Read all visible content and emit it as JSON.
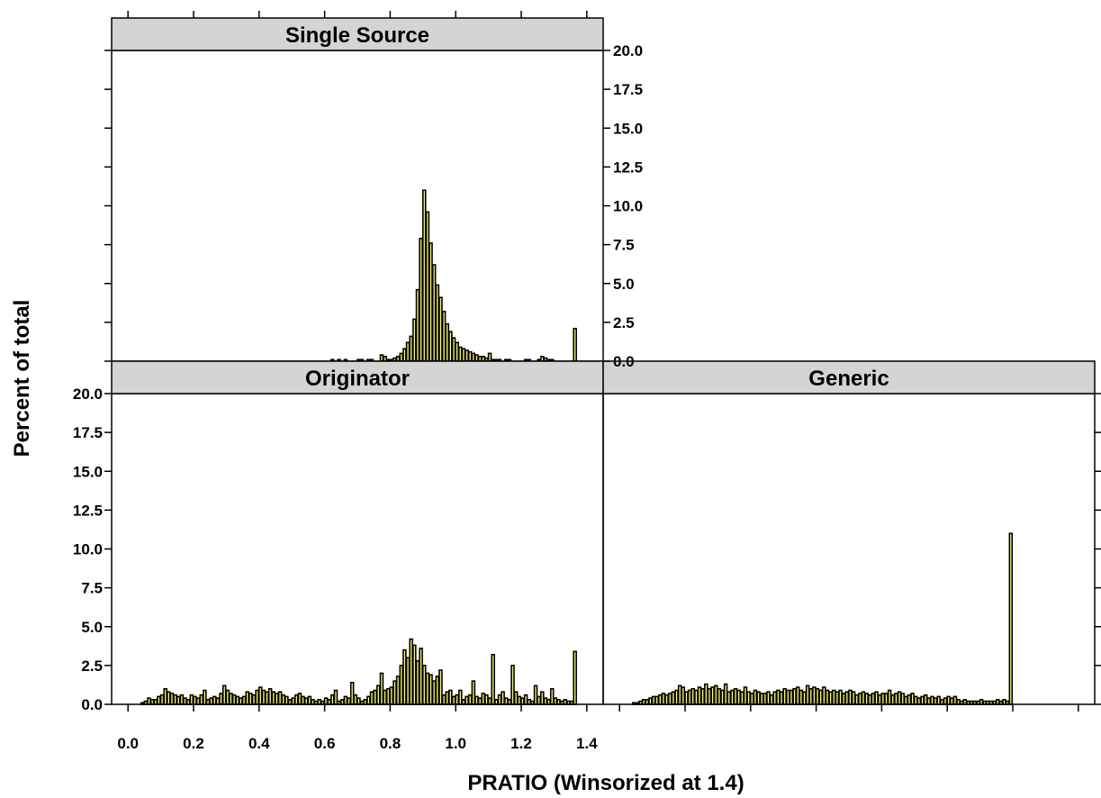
{
  "chart_data": {
    "type": "bar",
    "xlabel": "PRATIO (Winsorized at 1.4)",
    "ylabel": "Percent of total",
    "xlim": [
      -0.05,
      1.45
    ],
    "ylim": [
      0,
      20
    ],
    "x_ticks": [
      "0.0",
      "0.2",
      "0.4",
      "0.6",
      "0.8",
      "1.0",
      "1.2",
      "1.4"
    ],
    "x_tick_values": [
      0.0,
      0.2,
      0.4,
      0.6,
      0.8,
      1.0,
      1.2,
      1.4
    ],
    "y_ticks": [
      "0.0",
      "2.5",
      "5.0",
      "7.5",
      "10.0",
      "12.5",
      "15.0",
      "17.5",
      "20.0"
    ],
    "y_tick_values": [
      0,
      2.5,
      5,
      7.5,
      10,
      12.5,
      15,
      17.5,
      20
    ],
    "bin_width": 0.01,
    "bin_start": 0.0,
    "grid": false,
    "panels": [
      {
        "name": "Single Source",
        "values": [
          0,
          0,
          0,
          0,
          0,
          0,
          0,
          0,
          0,
          0,
          0,
          0,
          0,
          0,
          0,
          0,
          0,
          0,
          0,
          0,
          0,
          0,
          0,
          0,
          0,
          0,
          0,
          0,
          0,
          0,
          0,
          0,
          0,
          0,
          0,
          0,
          0,
          0,
          0,
          0,
          0,
          0,
          0,
          0,
          0,
          0,
          0,
          0,
          0,
          0,
          0,
          0,
          0,
          0,
          0,
          0,
          0,
          0,
          0,
          0,
          0,
          0,
          0.1,
          0,
          0.1,
          0,
          0.1,
          0,
          0,
          0,
          0.1,
          0.1,
          0,
          0.1,
          0.1,
          0,
          0,
          0.4,
          0.3,
          0.1,
          0.1,
          0.2,
          0.3,
          0.5,
          0.8,
          1.2,
          1.6,
          2.7,
          4.6,
          7.9,
          11.0,
          9.6,
          7.6,
          6.2,
          4.9,
          4.1,
          3.2,
          2.4,
          1.9,
          1.5,
          1.2,
          0.9,
          0.8,
          0.7,
          0.6,
          0.5,
          0.4,
          0.3,
          0.3,
          0.2,
          0.5,
          0.1,
          0.1,
          0.1,
          0,
          0.1,
          0.1,
          0,
          0,
          0,
          0,
          0.1,
          0.1,
          0,
          0,
          0.1,
          0.3,
          0.2,
          0.1,
          0.1,
          0,
          0,
          0,
          0,
          0,
          0,
          2.1
        ]
      },
      {
        "name": "Originator",
        "values": [
          0,
          0,
          0,
          0,
          0.1,
          0.2,
          0.4,
          0.3,
          0.3,
          0.5,
          0.6,
          1.0,
          0.8,
          0.7,
          0.6,
          0.5,
          0.6,
          0.4,
          0.3,
          0.6,
          0.5,
          0.4,
          0.6,
          0.9,
          0.3,
          0.4,
          0.5,
          0.4,
          0.7,
          1.2,
          0.9,
          0.7,
          0.6,
          0.5,
          0.4,
          0.5,
          0.8,
          0.7,
          0.6,
          0.9,
          1.1,
          0.9,
          0.8,
          1.0,
          0.8,
          0.7,
          0.8,
          0.6,
          0.5,
          0.3,
          0.4,
          0.6,
          0.7,
          0.5,
          0.4,
          0.5,
          0.3,
          0.2,
          0.3,
          0.2,
          0.4,
          0.3,
          0.6,
          0.9,
          0.2,
          0.3,
          0.5,
          0.4,
          1.4,
          0.6,
          0.4,
          0.2,
          0.3,
          0.5,
          0.8,
          0.9,
          1.2,
          2.0,
          0.9,
          1.0,
          1.1,
          1.5,
          1.8,
          2.5,
          3.5,
          3.0,
          4.2,
          3.8,
          2.8,
          3.6,
          2.5,
          2.0,
          1.9,
          1.5,
          1.8,
          2.2,
          0.6,
          0.8,
          0.9,
          0.5,
          0.6,
          0.9,
          0.3,
          0.5,
          0.6,
          1.5,
          0.5,
          0.4,
          0.7,
          0.6,
          0.4,
          3.2,
          0.3,
          0.6,
          0.8,
          0.4,
          0.3,
          2.5,
          0.8,
          0.5,
          0.4,
          0.6,
          0.3,
          0.2,
          1.2,
          0.5,
          0.8,
          0.4,
          0.3,
          1.0,
          0.4,
          0.3,
          0.2,
          0.3,
          0.2,
          0.2,
          3.4
        ]
      },
      {
        "name": "Generic",
        "values": [
          0,
          0,
          0,
          0,
          0.1,
          0.1,
          0.2,
          0.3,
          0.3,
          0.4,
          0.5,
          0.5,
          0.6,
          0.7,
          0.6,
          0.7,
          0.8,
          0.9,
          1.2,
          1.1,
          0.8,
          0.9,
          1.0,
          0.9,
          1.1,
          1.0,
          1.3,
          1.0,
          1.1,
          1.2,
          1.0,
          0.9,
          1.3,
          0.8,
          0.9,
          1.0,
          0.9,
          0.8,
          1.1,
          0.8,
          0.7,
          0.9,
          0.8,
          0.7,
          0.7,
          0.8,
          0.6,
          0.8,
          0.9,
          0.8,
          1.0,
          0.9,
          0.9,
          1.0,
          1.1,
          0.9,
          0.8,
          1.2,
          1.0,
          1.1,
          1.0,
          0.9,
          1.1,
          0.9,
          0.8,
          0.9,
          0.8,
          0.9,
          0.7,
          0.8,
          0.9,
          0.8,
          0.6,
          0.7,
          0.8,
          0.7,
          0.6,
          0.7,
          0.8,
          0.6,
          0.7,
          0.7,
          0.9,
          0.6,
          0.7,
          0.8,
          0.7,
          0.5,
          0.6,
          0.7,
          0.5,
          0.4,
          0.5,
          0.6,
          0.4,
          0.5,
          0.4,
          0.5,
          0.3,
          0.4,
          0.5,
          0.4,
          0.5,
          0.3,
          0.2,
          0.3,
          0.2,
          0.2,
          0.2,
          0.2,
          0.3,
          0.2,
          0.2,
          0.2,
          0.2,
          0.3,
          0.2,
          0.3,
          0.2,
          11.0
        ]
      }
    ]
  }
}
